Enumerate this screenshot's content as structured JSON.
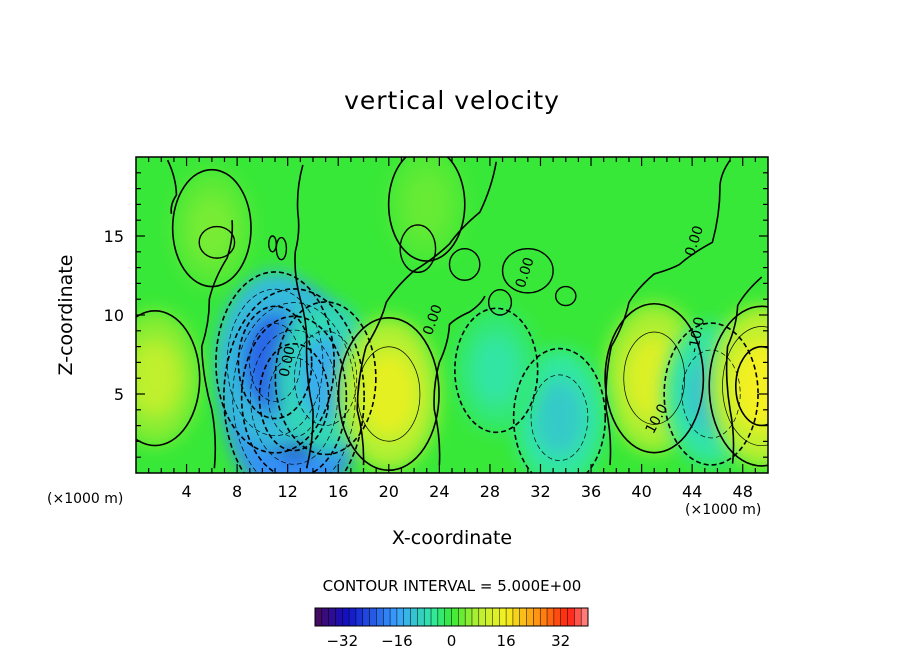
{
  "chart_data": {
    "type": "heatmap",
    "title": "vertical velocity",
    "xlabel": "X-coordinate",
    "ylabel": "Z-coordinate",
    "x_unit": "(×1000 m)",
    "z_unit": "(×1000 m)",
    "xlim": [
      0,
      50
    ],
    "ylim": [
      0,
      20
    ],
    "x_ticks": [
      4,
      8,
      12,
      16,
      20,
      24,
      28,
      32,
      36,
      40,
      44,
      48
    ],
    "y_ticks": [
      5,
      10,
      15
    ],
    "contour_interval_label": "CONTOUR INTERVAL = 5.000E+00",
    "contour_interval": 5.0,
    "contour_labels": [
      "0.00",
      "0.00",
      "0.00",
      "-10.0",
      "10.0",
      "0.00"
    ],
    "colorbar": {
      "min": -40,
      "max": 40,
      "ticks": [
        -32,
        -16,
        0,
        16,
        32
      ],
      "tick_labels": [
        "−32",
        "−16",
        "0",
        "16",
        "32"
      ]
    },
    "features": [
      {
        "x": 12.5,
        "z": 4.8,
        "value": -32
      },
      {
        "x": 11.0,
        "z": 7.0,
        "value": -22
      },
      {
        "x": 15.0,
        "z": 6.0,
        "value": -14
      },
      {
        "x": 1.5,
        "z": 6.0,
        "value": 9
      },
      {
        "x": 20.0,
        "z": 5.0,
        "value": 14
      },
      {
        "x": 41.0,
        "z": 6.0,
        "value": 13
      },
      {
        "x": 45.5,
        "z": 5.0,
        "value": -11
      },
      {
        "x": 49.5,
        "z": 5.5,
        "value": 16
      },
      {
        "x": 33.5,
        "z": 3.5,
        "value": -10
      },
      {
        "x": 28.5,
        "z": 6.5,
        "value": -6
      },
      {
        "x": 6.0,
        "z": 15.5,
        "value": 4
      },
      {
        "x": 23.0,
        "z": 17.0,
        "value": 3
      }
    ]
  }
}
